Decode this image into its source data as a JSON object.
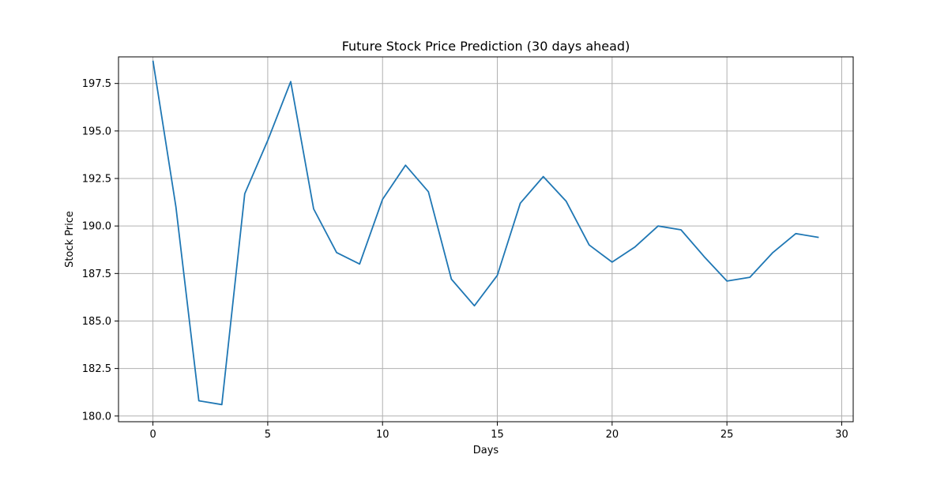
{
  "chart_data": {
    "type": "line",
    "title": "Future Stock Price Prediction (30 days ahead)",
    "xlabel": "Days",
    "ylabel": "Stock Price",
    "xlim": [
      -1.5,
      30.5
    ],
    "ylim": [
      179.7,
      198.9
    ],
    "xticks": [
      0,
      5,
      10,
      15,
      20,
      25,
      30
    ],
    "xtick_labels": [
      "0",
      "5",
      "10",
      "15",
      "20",
      "25",
      "30"
    ],
    "yticks": [
      180.0,
      182.5,
      185.0,
      187.5,
      190.0,
      192.5,
      195.0,
      197.5
    ],
    "ytick_labels": [
      "180.0",
      "182.5",
      "185.0",
      "187.5",
      "190.0",
      "192.5",
      "195.0",
      "197.5"
    ],
    "grid": true,
    "series": [
      {
        "color": "#1f77b4",
        "x": [
          0,
          1,
          2,
          3,
          4,
          5,
          6,
          7,
          8,
          9,
          10,
          11,
          12,
          13,
          14,
          15,
          16,
          17,
          18,
          19,
          20,
          21,
          22,
          23,
          24,
          25,
          26,
          27,
          28,
          29
        ],
        "values": [
          198.7,
          191.0,
          180.8,
          180.6,
          191.7,
          194.5,
          197.6,
          190.9,
          188.6,
          188.0,
          191.4,
          193.2,
          191.8,
          187.2,
          185.8,
          187.4,
          191.2,
          192.6,
          191.3,
          189.0,
          188.1,
          188.9,
          190.0,
          189.8,
          188.4,
          187.1,
          187.3,
          188.6,
          189.6,
          189.4
        ]
      }
    ]
  }
}
